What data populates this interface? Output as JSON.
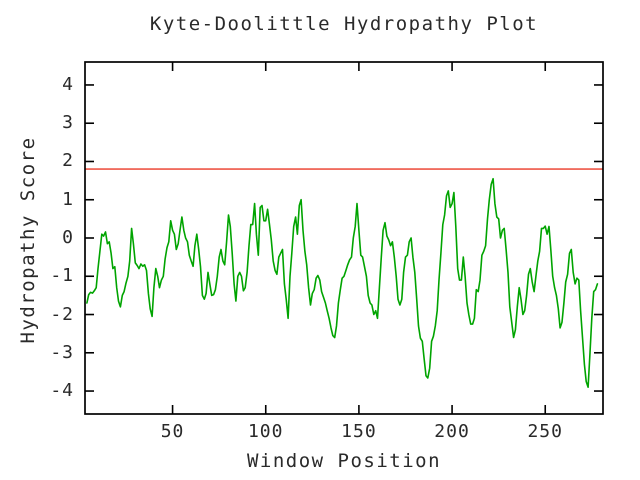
{
  "chart_data": {
    "type": "line",
    "title": "Kyte-Doolittle Hydropathy Plot",
    "xlabel": "Window Position",
    "ylabel": "Hydropathy Score",
    "xlim": [
      3,
      281
    ],
    "ylim": [
      -4.6,
      4.6
    ],
    "x_ticks": [
      50,
      100,
      150,
      200,
      250
    ],
    "y_ticks": [
      -4,
      -3,
      -2,
      -1,
      0,
      1,
      2,
      3,
      4
    ],
    "grid": false,
    "legend": "none",
    "series": [
      {
        "name": "hydropathy",
        "type": "line",
        "color": "#00a400",
        "x_start": 4,
        "x_step": 1,
        "values": [
          -1.7,
          -1.48,
          -1.42,
          -1.44,
          -1.38,
          -1.3,
          -0.8,
          -0.35,
          0.1,
          0.05,
          0.16,
          -0.15,
          -0.1,
          -0.4,
          -0.8,
          -0.75,
          -1.3,
          -1.65,
          -1.8,
          -1.5,
          -1.4,
          -1.18,
          -1.0,
          -0.6,
          0.25,
          -0.15,
          -0.65,
          -0.72,
          -0.8,
          -0.68,
          -0.74,
          -0.7,
          -0.85,
          -1.45,
          -1.85,
          -2.05,
          -1.3,
          -0.8,
          -1.0,
          -1.3,
          -1.1,
          -1.0,
          -0.55,
          -0.25,
          -0.1,
          0.45,
          0.2,
          0.1,
          -0.3,
          -0.15,
          0.2,
          0.55,
          0.2,
          0.0,
          -0.1,
          -0.45,
          -0.6,
          -0.74,
          -0.2,
          0.1,
          -0.3,
          -0.75,
          -1.5,
          -1.6,
          -1.45,
          -0.9,
          -1.2,
          -1.5,
          -1.48,
          -1.35,
          -1.0,
          -0.5,
          -0.3,
          -0.6,
          -0.7,
          -0.1,
          0.6,
          0.3,
          -0.4,
          -1.2,
          -1.65,
          -1.0,
          -0.9,
          -1.0,
          -1.38,
          -1.3,
          -0.9,
          -0.2,
          0.35,
          0.35,
          0.9,
          0.1,
          -0.45,
          0.8,
          0.85,
          0.45,
          0.45,
          0.75,
          0.35,
          -0.05,
          -0.6,
          -0.85,
          -0.95,
          -0.5,
          -0.4,
          -0.3,
          -1.2,
          -1.6,
          -2.1,
          -1.0,
          -0.4,
          0.3,
          0.55,
          0.1,
          0.85,
          1.0,
          0.2,
          -0.35,
          -0.7,
          -1.3,
          -1.75,
          -1.45,
          -1.35,
          -1.05,
          -0.98,
          -1.1,
          -1.4,
          -1.55,
          -1.7,
          -1.9,
          -2.1,
          -2.35,
          -2.55,
          -2.6,
          -2.3,
          -1.7,
          -1.35,
          -1.05,
          -1.0,
          -0.85,
          -0.7,
          -0.57,
          -0.5,
          0.0,
          0.3,
          0.9,
          0.2,
          -0.45,
          -0.5,
          -0.75,
          -1.0,
          -1.5,
          -1.7,
          -1.75,
          -2.0,
          -1.9,
          -2.1,
          -1.3,
          -0.5,
          0.2,
          0.4,
          0.05,
          -0.05,
          -0.2,
          -0.1,
          -0.5,
          -1.0,
          -1.6,
          -1.75,
          -1.6,
          -0.9,
          -0.5,
          -0.45,
          -0.1,
          0.0,
          -0.5,
          -0.9,
          -1.6,
          -2.3,
          -2.62,
          -2.7,
          -3.15,
          -3.6,
          -3.66,
          -3.4,
          -2.7,
          -2.57,
          -2.3,
          -1.9,
          -1.1,
          -0.4,
          0.35,
          0.6,
          1.1,
          1.23,
          0.8,
          0.9,
          1.19,
          0.3,
          -0.8,
          -1.1,
          -1.1,
          -0.5,
          -1.0,
          -1.7,
          -2.0,
          -2.25,
          -2.25,
          -2.1,
          -1.35,
          -1.4,
          -1.1,
          -0.45,
          -0.35,
          -0.2,
          0.5,
          1.0,
          1.4,
          1.55,
          0.9,
          0.55,
          0.5,
          0.0,
          0.2,
          0.25,
          -0.3,
          -0.9,
          -1.8,
          -2.2,
          -2.6,
          -2.4,
          -1.8,
          -1.3,
          -1.6,
          -2.0,
          -1.9,
          -1.5,
          -0.95,
          -0.8,
          -1.15,
          -1.4,
          -1.0,
          -0.6,
          -0.35,
          0.25,
          0.25,
          0.31,
          0.1,
          0.3,
          -0.3,
          -1.0,
          -1.3,
          -1.5,
          -1.85,
          -2.35,
          -2.2,
          -1.7,
          -1.15,
          -0.95,
          -0.4,
          -0.3,
          -0.9,
          -1.2,
          -1.05,
          -1.1,
          -1.9,
          -2.6,
          -3.3,
          -3.75,
          -3.9,
          -3.0,
          -2.1,
          -1.4,
          -1.35,
          -1.2
        ]
      },
      {
        "name": "hydrophobicity-cutoff",
        "type": "hline",
        "color": "#ee5747",
        "y": 1.8
      }
    ]
  },
  "colors": {
    "background": "#ffffff",
    "frame": "#000000",
    "text": "#2a2a2a",
    "line_green": "#00a400",
    "cutoff_red": "#ee5747"
  }
}
